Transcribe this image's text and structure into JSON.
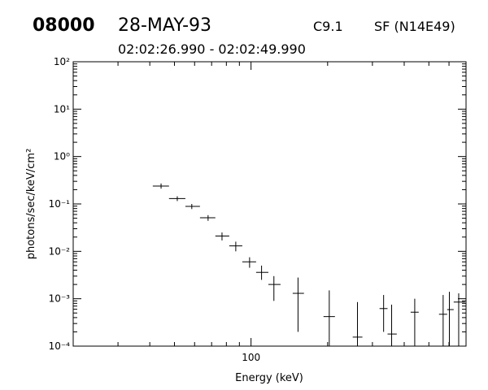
{
  "chart_data": {
    "type": "errorbar",
    "id": "08000",
    "date": "28-MAY-93",
    "class": "C9.1",
    "location": "SF (N14E49)",
    "subtitle": "02:02:26.990 - 02:02:49.990",
    "xlabel": "Energy (keV)",
    "ylabel": "photons/sec/keV/cm²",
    "xlog": true,
    "ylog": true,
    "xlim": [
      20,
      700
    ],
    "ylim": [
      0.0001,
      100
    ],
    "xticks": [
      100
    ],
    "yticks": [
      {
        "value": 0.0001,
        "label": "10⁻⁴"
      },
      {
        "value": 0.001,
        "label": "10⁻³"
      },
      {
        "value": 0.01,
        "label": "10⁻²"
      },
      {
        "value": 0.1,
        "label": "10⁻¹"
      },
      {
        "value": 1,
        "label": "10⁰"
      },
      {
        "value": 10,
        "label": "10¹"
      },
      {
        "value": 100,
        "label": "10²"
      }
    ],
    "color": "#000000",
    "x": [
      44.3,
      51.3,
      58.5,
      67.8,
      76.9,
      87.1,
      98.7,
      110,
      123,
      153,
      203,
      262,
      332,
      357,
      440,
      569,
      602,
      655
    ],
    "values": [
      0.238,
      0.13,
      0.089,
      0.051,
      0.021,
      0.013,
      0.006,
      0.0036,
      0.002,
      0.0013,
      0.00042,
      0.000155,
      0.00062,
      0.00018,
      0.00052,
      0.00047,
      0.00059,
      0.00085
    ],
    "x_lower": [
      41.1,
      47.6,
      55.2,
      63,
      72.4,
      82.1,
      92.4,
      104.7,
      117,
      145.8,
      192.7,
      251,
      320,
      344,
      424,
      548,
      590,
      626
    ],
    "x_upper": [
      47.6,
      55.2,
      63,
      72.4,
      82.1,
      92.4,
      104.7,
      117,
      130.6,
      161.5,
      213.7,
      274,
      344,
      374,
      456,
      590,
      626,
      694
    ],
    "y_lower": [
      0.21,
      0.115,
      0.078,
      0.044,
      0.017,
      0.01,
      0.0045,
      0.0025,
      0.0009,
      0.0002,
      0.0001,
      0.0001,
      0.0002,
      0.0001,
      0.0001,
      0.0001,
      0.0001,
      0.0001
    ],
    "y_upper": [
      0.27,
      0.145,
      0.1,
      0.058,
      0.025,
      0.016,
      0.0075,
      0.005,
      0.003,
      0.0028,
      0.0015,
      0.00085,
      0.0012,
      0.00075,
      0.001,
      0.0012,
      0.0014,
      0.0013
    ]
  }
}
